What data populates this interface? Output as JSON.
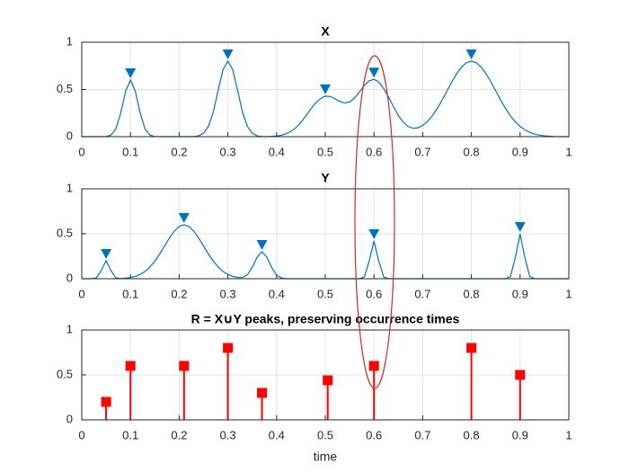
{
  "chart_data": [
    {
      "type": "line",
      "title": "X",
      "series": [
        {
          "color": "#0072bd",
          "x": [
            0,
            0.01,
            0.02,
            0.03,
            0.04,
            0.05,
            0.06,
            0.07,
            0.08,
            0.09,
            0.1,
            0.11,
            0.12,
            0.13,
            0.14,
            0.15,
            0.16,
            0.17,
            0.18,
            0.19,
            0.2,
            0.21,
            0.22,
            0.23,
            0.24,
            0.25,
            0.26,
            0.27,
            0.28,
            0.29,
            0.3,
            0.31,
            0.32,
            0.33,
            0.34,
            0.35,
            0.36,
            0.37,
            0.38,
            0.39,
            0.4,
            0.41,
            0.42,
            0.43,
            0.44,
            0.45,
            0.46,
            0.47,
            0.48,
            0.49,
            0.5,
            0.51,
            0.52,
            0.53,
            0.54,
            0.55,
            0.56,
            0.57,
            0.58,
            0.59,
            0.6,
            0.61,
            0.62,
            0.63,
            0.64,
            0.65,
            0.66,
            0.67,
            0.68,
            0.69,
            0.7,
            0.71,
            0.72,
            0.73,
            0.74,
            0.75,
            0.76,
            0.77,
            0.78,
            0.79,
            0.8,
            0.81,
            0.82,
            0.83,
            0.84,
            0.85,
            0.86,
            0.87,
            0.88,
            0.89,
            0.9,
            0.91,
            0.92,
            0.93,
            0.94,
            0.95,
            0.96,
            0.97,
            0.98,
            0.99,
            1
          ],
          "values": [
            0,
            0,
            0,
            0,
            0,
            0.002,
            0.017,
            0.08,
            0.25,
            0.48,
            0.6,
            0.48,
            0.25,
            0.08,
            0.017,
            0.002,
            0,
            0,
            0,
            0,
            0,
            0,
            0,
            0,
            0.009,
            0.035,
            0.11,
            0.26,
            0.49,
            0.71,
            0.8,
            0.71,
            0.49,
            0.26,
            0.11,
            0.035,
            0.009,
            0,
            0,
            0.003,
            0.007,
            0.015,
            0.031,
            0.057,
            0.096,
            0.151,
            0.219,
            0.291,
            0.357,
            0.403,
            0.43,
            0.425,
            0.401,
            0.372,
            0.357,
            0.367,
            0.409,
            0.473,
            0.541,
            0.591,
            0.607,
            0.579,
            0.51,
            0.418,
            0.318,
            0.225,
            0.154,
            0.108,
            0.089,
            0.093,
            0.118,
            0.162,
            0.222,
            0.3,
            0.389,
            0.485,
            0.581,
            0.668,
            0.738,
            0.784,
            0.8,
            0.784,
            0.738,
            0.668,
            0.581,
            0.485,
            0.389,
            0.3,
            0.222,
            0.158,
            0.108,
            0.071,
            0.045,
            0.027,
            0.016,
            0.009,
            0.005,
            0.002,
            0,
            0,
            0
          ]
        },
        {
          "color": "#0072bd",
          "marker": "triangle-down",
          "x": [
            0.1,
            0.3,
            0.5,
            0.6,
            0.8
          ],
          "values": [
            0.6,
            0.8,
            0.43,
            0.607,
            0.8
          ]
        }
      ],
      "xlim": [
        0,
        1
      ],
      "xticks": [
        0,
        0.1,
        0.2,
        0.3,
        0.4,
        0.5,
        0.6,
        0.7,
        0.8,
        0.9,
        1
      ],
      "ylim": [
        0,
        1
      ],
      "yticks": [
        0,
        0.5,
        1
      ],
      "grid": true
    },
    {
      "type": "line",
      "title": "Y",
      "series": [
        {
          "color": "#0072bd",
          "x": [
            0,
            0.01,
            0.02,
            0.03,
            0.04,
            0.05,
            0.06,
            0.07,
            0.08,
            0.09,
            0.1,
            0.11,
            0.12,
            0.13,
            0.14,
            0.15,
            0.16,
            0.17,
            0.18,
            0.19,
            0.2,
            0.21,
            0.22,
            0.23,
            0.24,
            0.25,
            0.26,
            0.27,
            0.28,
            0.29,
            0.3,
            0.31,
            0.32,
            0.33,
            0.34,
            0.35,
            0.36,
            0.37,
            0.38,
            0.39,
            0.4,
            0.41,
            0.42,
            0.43,
            0.44,
            0.45,
            0.46,
            0.47,
            0.48,
            0.49,
            0.5,
            0.51,
            0.52,
            0.53,
            0.54,
            0.55,
            0.56,
            0.57,
            0.58,
            0.59,
            0.6,
            0.61,
            0.62,
            0.63,
            0.64,
            0.65,
            0.66,
            0.67,
            0.68,
            0.69,
            0.7,
            0.71,
            0.72,
            0.73,
            0.74,
            0.75,
            0.76,
            0.77,
            0.78,
            0.79,
            0.8,
            0.81,
            0.82,
            0.83,
            0.84,
            0.85,
            0.86,
            0.87,
            0.88,
            0.89,
            0.9,
            0.91,
            0.92,
            0.93,
            0.94,
            0.95,
            0.96,
            0.97,
            0.98,
            0.99,
            1
          ],
          "values": [
            0,
            0,
            0,
            0.009,
            0.09,
            0.2,
            0.09,
            0.009,
            0.003,
            0.007,
            0.014,
            0.026,
            0.048,
            0.081,
            0.13,
            0.195,
            0.275,
            0.364,
            0.453,
            0.529,
            0.581,
            0.6,
            0.581,
            0.529,
            0.453,
            0.364,
            0.275,
            0.195,
            0.13,
            0.081,
            0.048,
            0.026,
            0.014,
            0.015,
            0.043,
            0.124,
            0.24,
            0.3,
            0.24,
            0.124,
            0.04,
            0.008,
            0,
            0,
            0,
            0,
            0,
            0,
            0,
            0,
            0,
            0,
            0,
            0,
            0,
            0,
            0,
            0,
            0.018,
            0.193,
            0.42,
            0.193,
            0.018,
            0,
            0,
            0,
            0,
            0,
            0,
            0,
            0,
            0,
            0,
            0,
            0,
            0,
            0,
            0,
            0,
            0,
            0,
            0,
            0,
            0,
            0,
            0,
            0,
            0,
            0.022,
            0.229,
            0.5,
            0.229,
            0.022,
            0,
            0,
            0,
            0,
            0,
            0,
            0,
            0
          ]
        },
        {
          "color": "#0072bd",
          "marker": "triangle-down",
          "x": [
            0.05,
            0.21,
            0.37,
            0.6,
            0.9
          ],
          "values": [
            0.2,
            0.6,
            0.3,
            0.42,
            0.5
          ]
        }
      ],
      "xlim": [
        0,
        1
      ],
      "xticks": [
        0,
        0.1,
        0.2,
        0.3,
        0.4,
        0.5,
        0.6,
        0.7,
        0.8,
        0.9,
        1
      ],
      "ylim": [
        0,
        1
      ],
      "yticks": [
        0,
        0.5,
        1
      ],
      "grid": true
    },
    {
      "type": "stem",
      "title": "R = X∪Y peaks, preserving occurrence times",
      "xlabel": "time",
      "color": "#ff0000",
      "x": [
        0.05,
        0.1,
        0.21,
        0.3,
        0.37,
        0.505,
        0.6,
        0.8,
        0.9
      ],
      "values": [
        0.2,
        0.6,
        0.6,
        0.8,
        0.3,
        0.44,
        0.6,
        0.8,
        0.5
      ],
      "xlim": [
        0,
        1
      ],
      "xticks": [
        0,
        0.1,
        0.2,
        0.3,
        0.4,
        0.5,
        0.6,
        0.7,
        0.8,
        0.9,
        1
      ],
      "ylim": [
        0,
        1
      ],
      "yticks": [
        0,
        0.5,
        1
      ],
      "grid": true
    }
  ]
}
